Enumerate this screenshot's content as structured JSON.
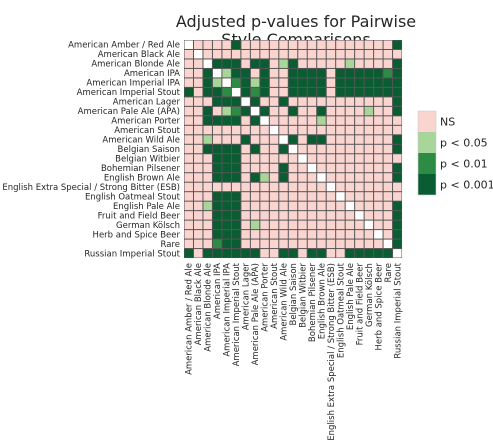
{
  "chart_data": {
    "type": "heatmap",
    "title_lines": [
      "Adjusted p-values for Pairwise",
      "Style Comparisons"
    ],
    "categories": [
      "American Amber / Red Ale",
      "American Black Ale",
      "American Blonde Ale",
      "American IPA",
      "American Imperial IPA",
      "American Imperial Stout",
      "American Lager",
      "American Pale Ale (APA)",
      "American Porter",
      "American Stout",
      "American Wild Ale",
      "Belgian Saison",
      "Belgian Witbier",
      "Bohemian Pilsener",
      "English Brown Ale",
      "English Extra Special / Strong Bitter (ESB)",
      "English Oatmeal Stout",
      "English Pale Ale",
      "Fruit and Field Beer",
      "German Kölsch",
      "Herb and Spice Beer",
      "Rare",
      "Russian Imperial Stout"
    ],
    "legend": {
      "levels": [
        "NS",
        "p < 0.05",
        "p < 0.01",
        "p < 0.001"
      ],
      "colors": [
        "#fad4cf",
        "#a8d69a",
        "#2e8b45",
        "#0a5c32"
      ]
    },
    "diagonal_color": "#ffffff",
    "significance_matrix": [
      [
        -1,
        0,
        0,
        0,
        0,
        3,
        0,
        0,
        0,
        0,
        0,
        0,
        0,
        0,
        0,
        0,
        0,
        0,
        0,
        0,
        0,
        0,
        3
      ],
      [
        0,
        -1,
        0,
        0,
        0,
        0,
        0,
        0,
        0,
        0,
        0,
        0,
        0,
        0,
        0,
        0,
        0,
        0,
        0,
        0,
        0,
        0,
        0
      ],
      [
        0,
        0,
        -1,
        3,
        3,
        3,
        0,
        3,
        3,
        0,
        1,
        3,
        0,
        0,
        0,
        0,
        0,
        1,
        0,
        0,
        0,
        0,
        3
      ],
      [
        0,
        0,
        3,
        -1,
        1,
        3,
        3,
        0,
        3,
        0,
        0,
        3,
        3,
        3,
        3,
        0,
        3,
        3,
        3,
        3,
        3,
        2,
        3
      ],
      [
        0,
        0,
        3,
        1,
        -1,
        2,
        3,
        1,
        3,
        0,
        0,
        3,
        3,
        3,
        3,
        0,
        3,
        3,
        3,
        3,
        3,
        3,
        3
      ],
      [
        3,
        0,
        3,
        3,
        2,
        -1,
        3,
        2,
        3,
        0,
        0,
        3,
        3,
        3,
        3,
        0,
        3,
        3,
        3,
        3,
        3,
        3,
        3
      ],
      [
        0,
        0,
        0,
        3,
        3,
        3,
        -1,
        3,
        0,
        0,
        3,
        0,
        0,
        0,
        0,
        0,
        0,
        0,
        0,
        0,
        0,
        0,
        3
      ],
      [
        0,
        0,
        3,
        0,
        1,
        2,
        3,
        -1,
        3,
        0,
        0,
        3,
        0,
        0,
        3,
        0,
        0,
        0,
        0,
        1,
        0,
        0,
        3
      ],
      [
        0,
        0,
        3,
        3,
        3,
        3,
        0,
        3,
        -1,
        0,
        0,
        0,
        0,
        0,
        1,
        0,
        0,
        0,
        0,
        0,
        0,
        0,
        0
      ],
      [
        0,
        0,
        0,
        0,
        0,
        0,
        0,
        0,
        0,
        -1,
        0,
        0,
        0,
        0,
        0,
        0,
        0,
        0,
        0,
        0,
        0,
        0,
        0
      ],
      [
        0,
        0,
        1,
        0,
        0,
        0,
        3,
        0,
        0,
        0,
        -1,
        3,
        0,
        3,
        3,
        0,
        0,
        0,
        0,
        0,
        0,
        0,
        3
      ],
      [
        0,
        0,
        3,
        3,
        3,
        3,
        0,
        3,
        0,
        0,
        3,
        -1,
        0,
        0,
        0,
        0,
        0,
        0,
        0,
        0,
        0,
        0,
        3
      ],
      [
        0,
        0,
        0,
        3,
        3,
        3,
        0,
        0,
        0,
        0,
        0,
        0,
        -1,
        0,
        0,
        0,
        0,
        0,
        0,
        0,
        0,
        0,
        0
      ],
      [
        0,
        0,
        0,
        3,
        3,
        3,
        0,
        0,
        0,
        0,
        3,
        0,
        0,
        -1,
        0,
        0,
        0,
        0,
        0,
        0,
        0,
        0,
        3
      ],
      [
        0,
        0,
        0,
        3,
        3,
        3,
        0,
        3,
        1,
        0,
        3,
        0,
        0,
        0,
        -1,
        0,
        0,
        0,
        0,
        0,
        0,
        0,
        3
      ],
      [
        0,
        0,
        0,
        0,
        0,
        0,
        0,
        0,
        0,
        0,
        0,
        0,
        0,
        0,
        0,
        -1,
        0,
        0,
        0,
        0,
        0,
        0,
        0
      ],
      [
        0,
        0,
        0,
        3,
        3,
        3,
        0,
        0,
        0,
        0,
        0,
        0,
        0,
        0,
        0,
        0,
        -1,
        0,
        0,
        0,
        0,
        0,
        0
      ],
      [
        0,
        0,
        1,
        3,
        3,
        3,
        0,
        0,
        0,
        0,
        0,
        0,
        0,
        0,
        0,
        0,
        0,
        -1,
        0,
        0,
        0,
        0,
        3
      ],
      [
        0,
        0,
        0,
        3,
        3,
        3,
        0,
        0,
        0,
        0,
        0,
        0,
        0,
        0,
        0,
        0,
        0,
        0,
        -1,
        0,
        0,
        0,
        3
      ],
      [
        0,
        0,
        0,
        3,
        3,
        3,
        0,
        1,
        0,
        0,
        0,
        0,
        0,
        0,
        0,
        0,
        0,
        0,
        0,
        -1,
        0,
        0,
        3
      ],
      [
        0,
        0,
        0,
        3,
        3,
        3,
        0,
        0,
        0,
        0,
        0,
        0,
        0,
        0,
        0,
        0,
        0,
        0,
        0,
        0,
        -1,
        0,
        3
      ],
      [
        0,
        0,
        0,
        2,
        3,
        3,
        0,
        0,
        0,
        0,
        0,
        0,
        0,
        0,
        0,
        0,
        0,
        0,
        0,
        0,
        0,
        -1,
        3
      ],
      [
        3,
        0,
        3,
        3,
        3,
        3,
        3,
        3,
        0,
        0,
        3,
        3,
        0,
        3,
        3,
        0,
        0,
        3,
        3,
        3,
        3,
        3,
        -1
      ]
    ]
  }
}
